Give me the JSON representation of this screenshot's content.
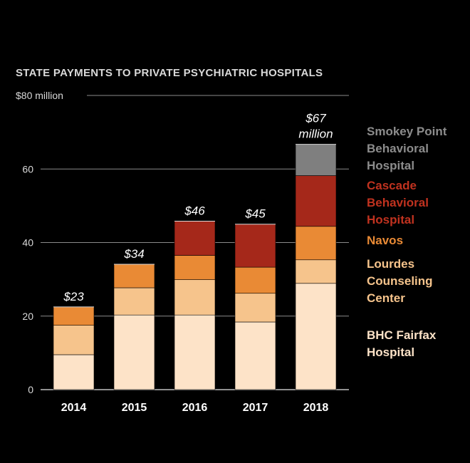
{
  "chart_data": {
    "type": "bar",
    "stacked": true,
    "title": "STATE PAYMENTS TO PRIVATE PSYCHIATRIC HOSPITALS",
    "categories": [
      "2014",
      "2015",
      "2016",
      "2017",
      "2018"
    ],
    "ylim": [
      0,
      80
    ],
    "yticks": [
      {
        "value": 0,
        "label": "0"
      },
      {
        "value": 20,
        "label": "20"
      },
      {
        "value": 40,
        "label": "40"
      },
      {
        "value": 60,
        "label": "60"
      },
      {
        "value": 80,
        "label": "$80 million"
      }
    ],
    "grid": true,
    "legend_position": "right",
    "series": [
      {
        "name": "BHC Fairfax Hospital",
        "legend_lines": [
          "BHC Fairfax",
          "Hospital"
        ],
        "color": "#fde3c8",
        "values": [
          9.5,
          20.3,
          20.3,
          18.4,
          28.9
        ]
      },
      {
        "name": "Lourdes Counseling Center",
        "legend_lines": [
          "Lourdes",
          "Counseling",
          "Center"
        ],
        "color": "#f6c48c",
        "values": [
          8.0,
          7.4,
          9.6,
          7.8,
          6.4
        ]
      },
      {
        "name": "Navos",
        "legend_lines": [
          "Navos"
        ],
        "color": "#e98a35",
        "values": [
          5.0,
          6.4,
          6.6,
          7.1,
          9.1
        ]
      },
      {
        "name": "Cascade Behavioral Hospital",
        "legend_lines": [
          "Cascade",
          "Behavioral",
          "Hospital"
        ],
        "color": "#a5281a",
        "values": [
          0,
          0,
          9.3,
          11.7,
          13.8
        ]
      },
      {
        "name": "Smokey Point Behavioral Hospital",
        "legend_lines": [
          "Smokey Point",
          "Behavioral",
          "Hospital"
        ],
        "color": "#7f7f7f",
        "values": [
          0,
          0,
          0,
          0,
          8.5
        ]
      }
    ],
    "totals": [
      {
        "lines": [
          "$23"
        ]
      },
      {
        "lines": [
          "$34"
        ]
      },
      {
        "lines": [
          "$46"
        ]
      },
      {
        "lines": [
          "$45"
        ]
      },
      {
        "lines": [
          "$67",
          "million"
        ]
      }
    ]
  }
}
